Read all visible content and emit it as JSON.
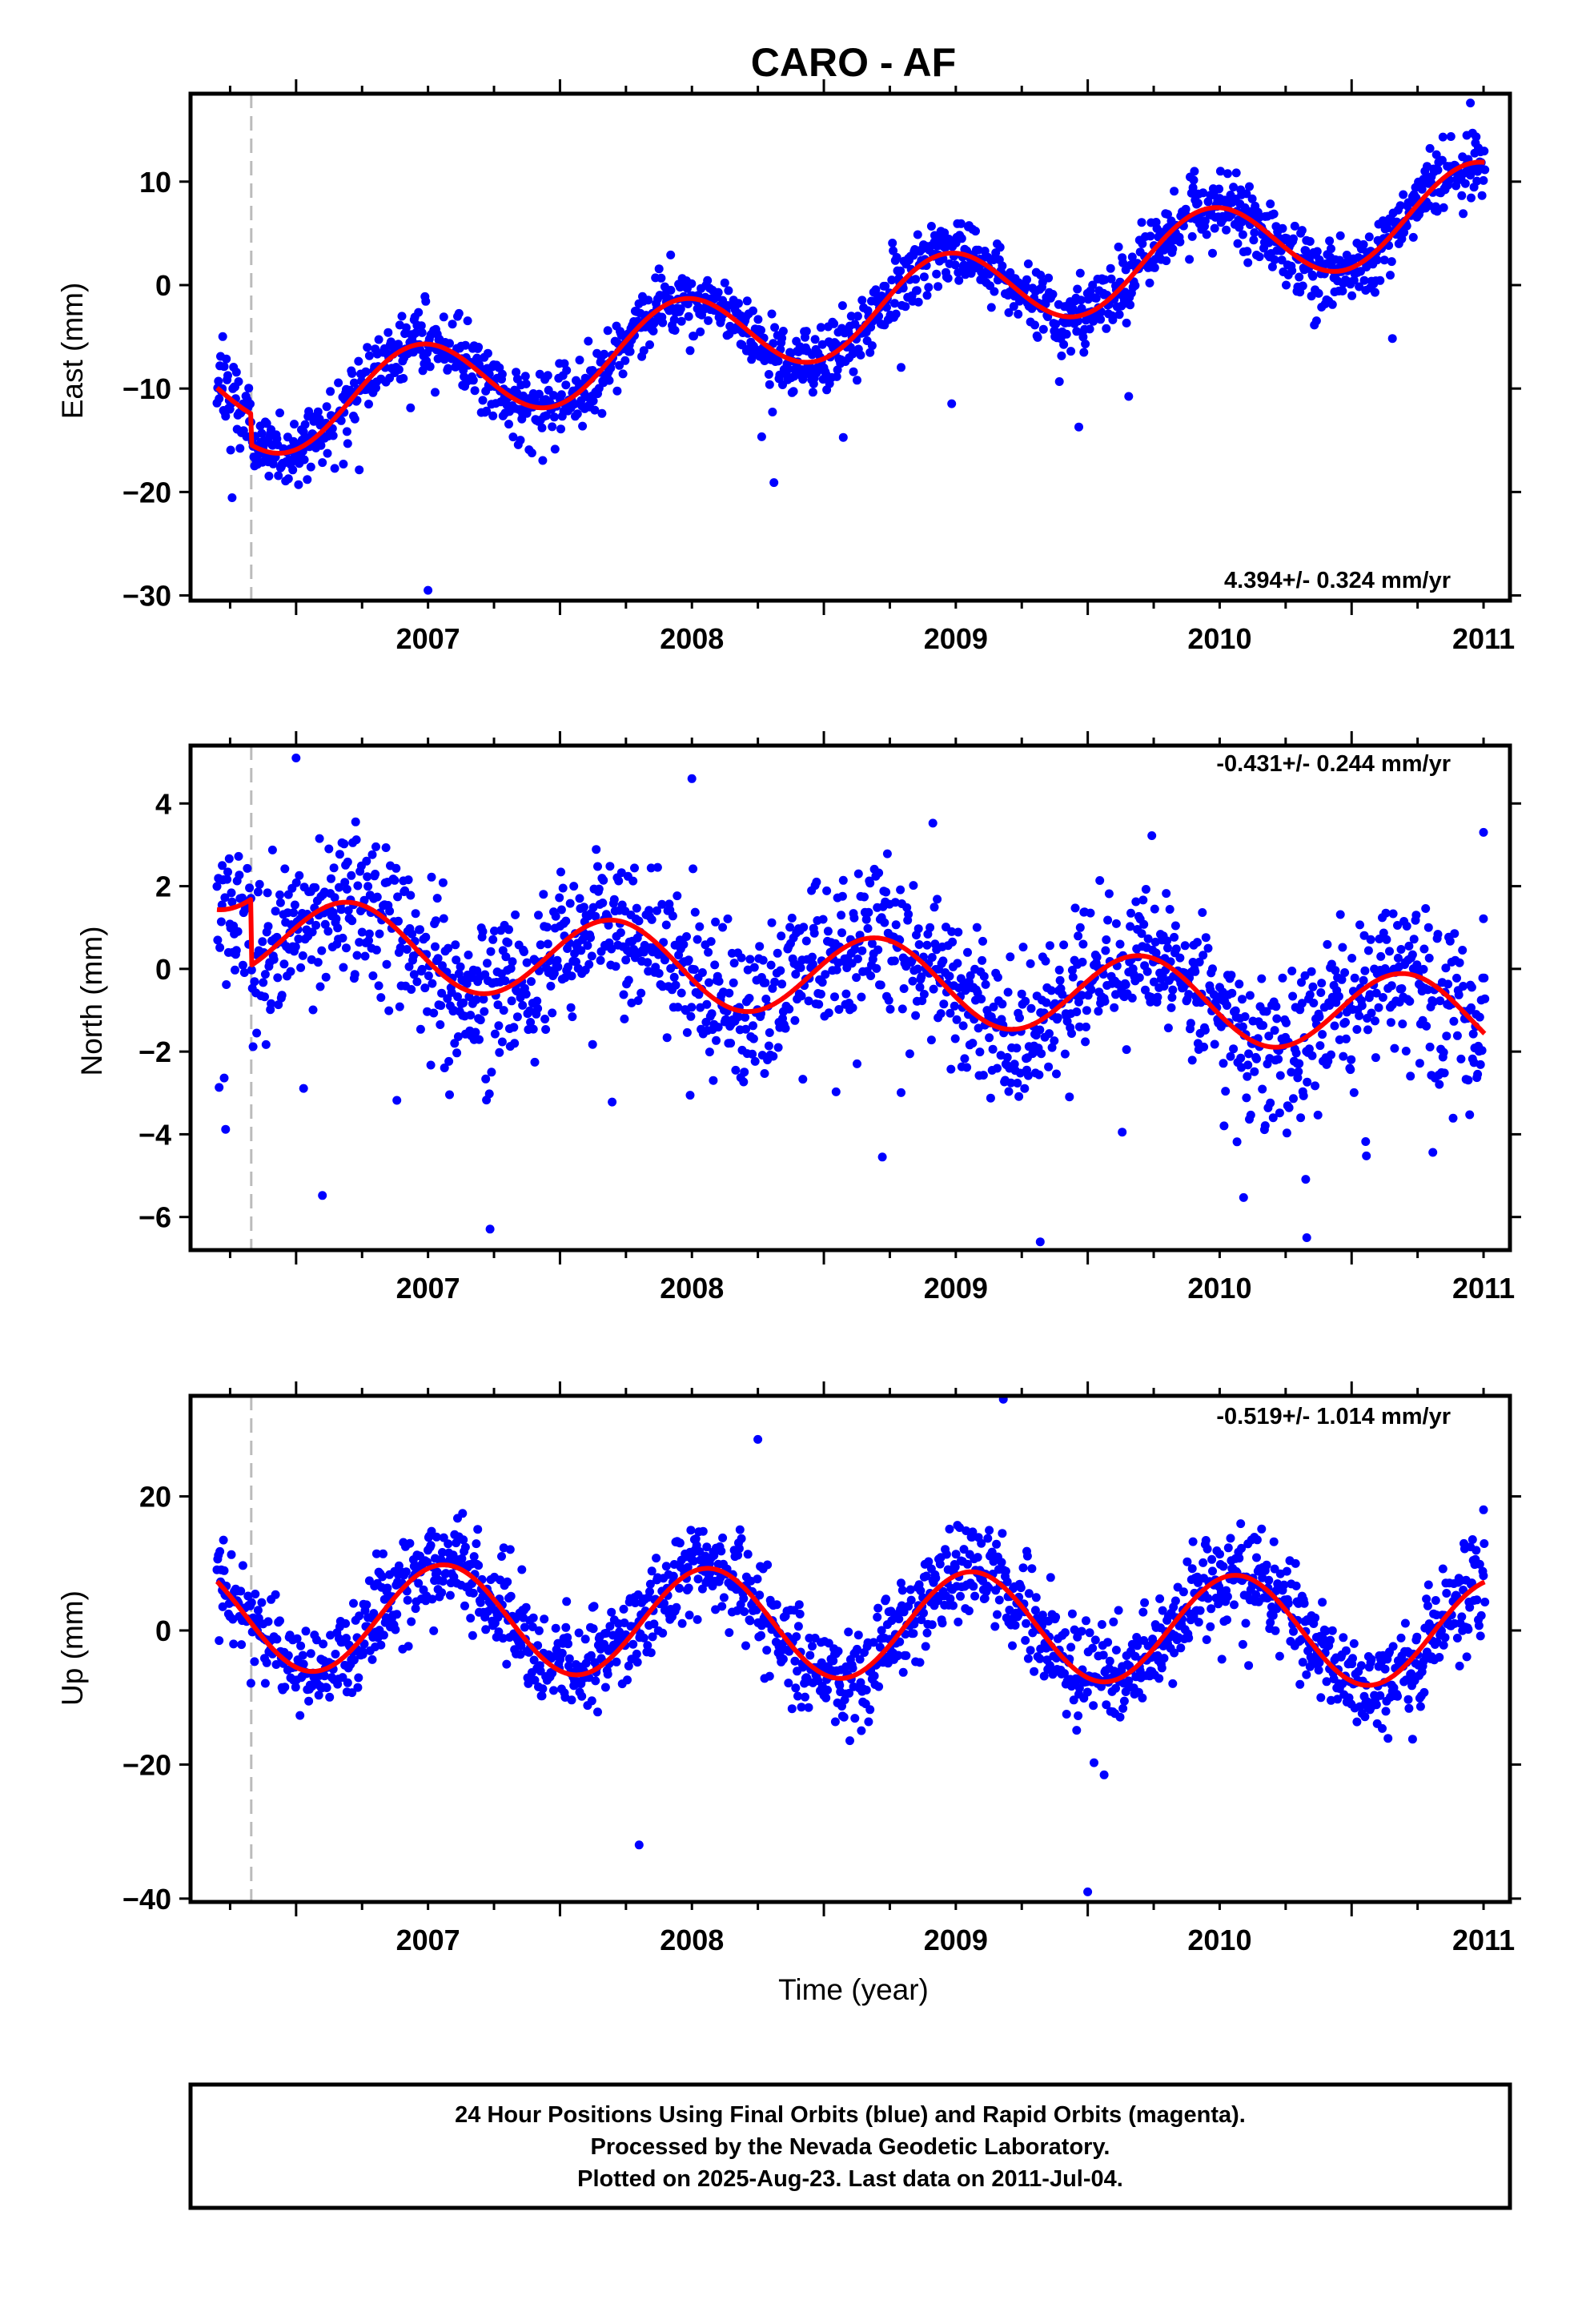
{
  "chart_data": {
    "title": "CARO - AF",
    "xlabel": "Time (year)",
    "xlim": [
      2006.6,
      2011.6
    ],
    "x_ticks": [
      2007,
      2008,
      2009,
      2010,
      2011
    ],
    "event_line_x": 2006.83,
    "colors": {
      "points": "#0000ff",
      "model": "#ff0000",
      "event_line": "#bbbbbb"
    },
    "panels": [
      {
        "type": "scatter",
        "ylabel": "East (mm)",
        "ylim": [
          -30.5,
          18.5
        ],
        "y_ticks": [
          -30,
          -20,
          -10,
          0,
          10
        ],
        "rate_label": "4.394+/- 0.324 mm/yr",
        "rate_position": "bottom-right",
        "model": {
          "y2007": -11.9,
          "rate": 4.394,
          "a_sin": 1.0,
          "a_cos": -4.0,
          "offset_before_event": 3.0
        },
        "noise_sd": 1.6,
        "sample_points": [
          [
            2006.72,
            -10.0
          ],
          [
            2007.5,
            -29.5
          ],
          [
            2008.42,
            -0.5
          ],
          [
            2009.42,
            4.8
          ],
          [
            2010.42,
            8.8
          ],
          [
            2011.45,
            17.6
          ]
        ]
      },
      {
        "type": "scatter",
        "ylabel": "North (mm)",
        "ylim": [
          -6.8,
          5.4
        ],
        "y_ticks": [
          -6,
          -4,
          -2,
          0,
          2,
          4
        ],
        "rate_label": "-0.431+/- 0.244 mm/yr",
        "rate_position": "top-right",
        "model": {
          "y2007": 0.7,
          "rate": -0.431,
          "a_sin": 0.95,
          "a_cos": 0.3,
          "offset_before_event": 1.6
        },
        "noise_sd": 0.9,
        "sample_points": [
          [
            2006.72,
            2.5
          ],
          [
            2007.0,
            5.1
          ],
          [
            2008.5,
            4.6
          ],
          [
            2009.82,
            -6.6
          ],
          [
            2010.83,
            -6.5
          ],
          [
            2011.5,
            3.3
          ]
        ]
      },
      {
        "type": "scatter",
        "ylabel": "Up (mm)",
        "ylim": [
          -40.5,
          35
        ],
        "y_ticks": [
          -40,
          -20,
          0,
          20
        ],
        "rate_label": "-0.519+/- 1.014 mm/yr",
        "rate_position": "top-right",
        "model": {
          "y2007": 2.0,
          "rate": -0.519,
          "a_sin": -3.0,
          "a_cos": -7.5,
          "offset_before_event": 0.0
        },
        "noise_sd": 3.5,
        "sample_points": [
          [
            2006.72,
            6.0
          ],
          [
            2008.3,
            -32.0
          ],
          [
            2008.75,
            28.5
          ],
          [
            2009.68,
            34.5
          ],
          [
            2010.0,
            -39.0
          ],
          [
            2011.5,
            18.0
          ]
        ]
      }
    ]
  },
  "footer": {
    "line1": "24 Hour Positions Using Final Orbits (blue) and Rapid Orbits (magenta).",
    "line2": "Processed by the Nevada Geodetic Laboratory.",
    "line3": "Plotted on 2025-Aug-23. Last data on 2011-Jul-04."
  }
}
